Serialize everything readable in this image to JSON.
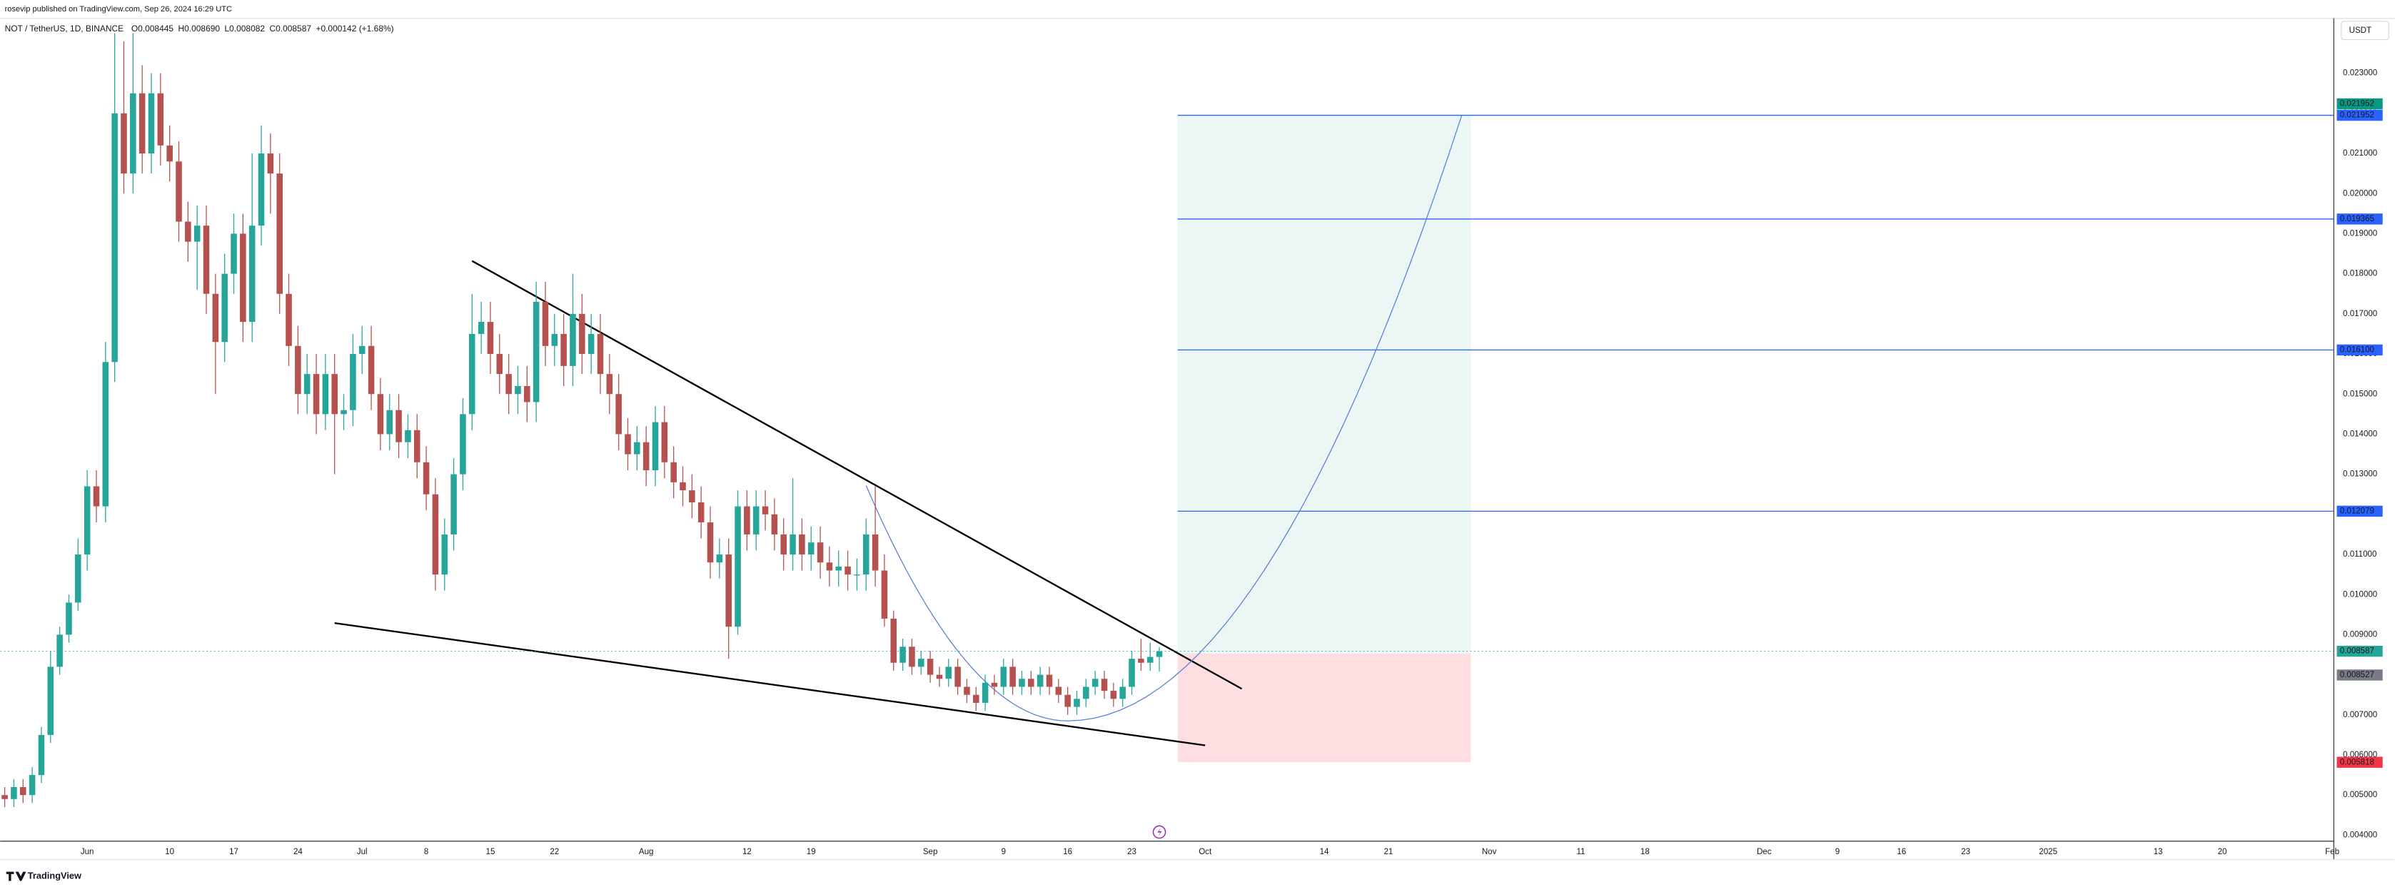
{
  "header": {
    "publisher": "rosevip published on TradingView.com, Sep 26, 2024 16:29 UTC",
    "symbol": "NOT / TetherUS, 1D, BINANCE",
    "ohlc": [
      "O0.008445",
      "H0.008690",
      "L0.008082",
      "C0.008587"
    ],
    "change": "+0.000142 (+1.68%)",
    "currency": "USDT",
    "brand": "TradingView"
  },
  "chart_data": {
    "type": "candlestick",
    "up_color": "#26a69a",
    "down_color": "#b5524f",
    "grid": false,
    "xlim": [
      "2024-05-22",
      "2025-02-01"
    ],
    "ylim": [
      0.00385,
      0.02437
    ],
    "yticks": [
      {
        "value": 0.023,
        "label": "0.023000"
      },
      {
        "value": 0.022,
        "label": "0.022000"
      },
      {
        "value": 0.021,
        "label": "0.021000"
      },
      {
        "value": 0.02,
        "label": "0.020000"
      },
      {
        "value": 0.019,
        "label": "0.019000"
      },
      {
        "value": 0.018,
        "label": "0.018000"
      },
      {
        "value": 0.017,
        "label": "0.017000"
      },
      {
        "value": 0.016,
        "label": "0.016000"
      },
      {
        "value": 0.015,
        "label": "0.015000"
      },
      {
        "value": 0.014,
        "label": "0.014000"
      },
      {
        "value": 0.013,
        "label": "0.013000"
      },
      {
        "value": 0.012,
        "label": "0.012000"
      },
      {
        "value": 0.011,
        "label": "0.011000"
      },
      {
        "value": 0.01,
        "label": "0.010000"
      },
      {
        "value": 0.009,
        "label": "0.009000"
      },
      {
        "value": 0.008,
        "label": "0.008000"
      },
      {
        "value": 0.007,
        "label": "0.007000"
      },
      {
        "value": 0.006,
        "label": "0.006000"
      },
      {
        "value": 0.005,
        "label": "0.005000"
      },
      {
        "value": 0.004,
        "label": "0.004000"
      }
    ],
    "xticks": [
      {
        "value": "2024-06-01",
        "label": "Jun"
      },
      {
        "value": "2024-06-10",
        "label": "10"
      },
      {
        "value": "2024-06-17",
        "label": "17"
      },
      {
        "value": "2024-06-24",
        "label": "24"
      },
      {
        "value": "2024-07-01",
        "label": "Jul"
      },
      {
        "value": "2024-07-08",
        "label": "8"
      },
      {
        "value": "2024-07-15",
        "label": "15"
      },
      {
        "value": "2024-07-22",
        "label": "22"
      },
      {
        "value": "2024-08-01",
        "label": "Aug"
      },
      {
        "value": "2024-08-12",
        "label": "12"
      },
      {
        "value": "2024-08-19",
        "label": "19"
      },
      {
        "value": "2024-09-01",
        "label": "Sep"
      },
      {
        "value": "2024-09-09",
        "label": "9"
      },
      {
        "value": "2024-09-16",
        "label": "16"
      },
      {
        "value": "2024-09-23",
        "label": "23"
      },
      {
        "value": "2024-10-01",
        "label": "Oct"
      },
      {
        "value": "2024-10-14",
        "label": "14"
      },
      {
        "value": "2024-10-21",
        "label": "21"
      },
      {
        "value": "2024-11-01",
        "label": "Nov"
      },
      {
        "value": "2024-11-11",
        "label": "11"
      },
      {
        "value": "2024-11-18",
        "label": "18"
      },
      {
        "value": "2024-12-01",
        "label": "Dec"
      },
      {
        "value": "2024-12-09",
        "label": "9"
      },
      {
        "value": "2024-12-16",
        "label": "16"
      },
      {
        "value": "2024-12-23",
        "label": "23"
      },
      {
        "value": "2025-01-01",
        "label": "2025"
      },
      {
        "value": "2025-01-13",
        "label": "13"
      },
      {
        "value": "2025-01-20",
        "label": "20"
      },
      {
        "value": "2025-02-01",
        "label": "Feb"
      }
    ],
    "x": [
      "2024-05-23",
      "2024-05-24",
      "2024-05-25",
      "2024-05-26",
      "2024-05-27",
      "2024-05-28",
      "2024-05-29",
      "2024-05-30",
      "2024-05-31",
      "2024-06-01",
      "2024-06-02",
      "2024-06-03",
      "2024-06-04",
      "2024-06-05",
      "2024-06-06",
      "2024-06-07",
      "2024-06-08",
      "2024-06-09",
      "2024-06-10",
      "2024-06-11",
      "2024-06-12",
      "2024-06-13",
      "2024-06-14",
      "2024-06-15",
      "2024-06-16",
      "2024-06-17",
      "2024-06-18",
      "2024-06-19",
      "2024-06-20",
      "2024-06-21",
      "2024-06-22",
      "2024-06-23",
      "2024-06-24",
      "2024-06-25",
      "2024-06-26",
      "2024-06-27",
      "2024-06-28",
      "2024-06-29",
      "2024-06-30",
      "2024-07-01",
      "2024-07-02",
      "2024-07-03",
      "2024-07-04",
      "2024-07-05",
      "2024-07-06",
      "2024-07-07",
      "2024-07-08",
      "2024-07-09",
      "2024-07-10",
      "2024-07-11",
      "2024-07-12",
      "2024-07-13",
      "2024-07-14",
      "2024-07-15",
      "2024-07-16",
      "2024-07-17",
      "2024-07-18",
      "2024-07-19",
      "2024-07-20",
      "2024-07-21",
      "2024-07-22",
      "2024-07-23",
      "2024-07-24",
      "2024-07-25",
      "2024-07-26",
      "2024-07-27",
      "2024-07-28",
      "2024-07-29",
      "2024-07-30",
      "2024-07-31",
      "2024-08-01",
      "2024-08-02",
      "2024-08-03",
      "2024-08-04",
      "2024-08-05",
      "2024-08-06",
      "2024-08-07",
      "2024-08-08",
      "2024-08-09",
      "2024-08-10",
      "2024-08-11",
      "2024-08-12",
      "2024-08-13",
      "2024-08-14",
      "2024-08-15",
      "2024-08-16",
      "2024-08-17",
      "2024-08-18",
      "2024-08-19",
      "2024-08-20",
      "2024-08-21",
      "2024-08-22",
      "2024-08-23",
      "2024-08-24",
      "2024-08-25",
      "2024-08-26",
      "2024-08-27",
      "2024-08-28",
      "2024-08-29",
      "2024-08-30",
      "2024-08-31",
      "2024-09-01",
      "2024-09-02",
      "2024-09-03",
      "2024-09-04",
      "2024-09-05",
      "2024-09-06",
      "2024-09-07",
      "2024-09-08",
      "2024-09-09",
      "2024-09-10",
      "2024-09-11",
      "2024-09-12",
      "2024-09-13",
      "2024-09-14",
      "2024-09-15",
      "2024-09-16",
      "2024-09-17",
      "2024-09-18",
      "2024-09-19",
      "2024-09-20",
      "2024-09-21",
      "2024-09-22",
      "2024-09-23",
      "2024-09-24",
      "2024-09-25",
      "2024-09-26"
    ],
    "open": [
      0.005,
      0.0049,
      0.0052,
      0.005,
      0.0055,
      0.0065,
      0.0082,
      0.009,
      0.0098,
      0.011,
      0.0127,
      0.0122,
      0.0158,
      0.022,
      0.0205,
      0.0225,
      0.021,
      0.0225,
      0.0212,
      0.0208,
      0.0193,
      0.0188,
      0.0192,
      0.0175,
      0.0163,
      0.018,
      0.019,
      0.0168,
      0.0192,
      0.021,
      0.0205,
      0.0175,
      0.0162,
      0.015,
      0.0155,
      0.0145,
      0.0155,
      0.0145,
      0.0146,
      0.016,
      0.0162,
      0.015,
      0.014,
      0.0146,
      0.0138,
      0.0141,
      0.0133,
      0.0125,
      0.0105,
      0.0115,
      0.013,
      0.0145,
      0.0165,
      0.0168,
      0.016,
      0.0155,
      0.015,
      0.0152,
      0.0148,
      0.0173,
      0.0162,
      0.0165,
      0.0157,
      0.017,
      0.016,
      0.0165,
      0.0155,
      0.015,
      0.014,
      0.0135,
      0.0138,
      0.0131,
      0.0143,
      0.0133,
      0.0128,
      0.0126,
      0.0123,
      0.0118,
      0.0108,
      0.011,
      0.0092,
      0.0122,
      0.0115,
      0.0122,
      0.012,
      0.0115,
      0.011,
      0.0115,
      0.011,
      0.0113,
      0.0108,
      0.0106,
      0.0107,
      0.0105,
      0.0105,
      0.0115,
      0.0106,
      0.0094,
      0.0083,
      0.0087,
      0.0082,
      0.0084,
      0.008,
      0.0079,
      0.0082,
      0.0077,
      0.0075,
      0.0073,
      0.0078,
      0.0077,
      0.0082,
      0.0077,
      0.0079,
      0.0077,
      0.008,
      0.0077,
      0.0075,
      0.0072,
      0.0074,
      0.0077,
      0.0079,
      0.0076,
      0.0074,
      0.0077,
      0.0084,
      0.0083,
      0.008445
    ],
    "high": [
      0.0052,
      0.0054,
      0.0054,
      0.0057,
      0.0067,
      0.0086,
      0.0092,
      0.01,
      0.0114,
      0.0131,
      0.0131,
      0.0163,
      0.024,
      0.0238,
      0.024,
      0.0232,
      0.023,
      0.023,
      0.0217,
      0.0213,
      0.0198,
      0.0197,
      0.0197,
      0.018,
      0.0185,
      0.0195,
      0.0195,
      0.021,
      0.0217,
      0.0215,
      0.021,
      0.018,
      0.0167,
      0.016,
      0.016,
      0.016,
      0.016,
      0.015,
      0.0165,
      0.0167,
      0.0167,
      0.0154,
      0.015,
      0.015,
      0.0145,
      0.0145,
      0.0137,
      0.0129,
      0.0119,
      0.0134,
      0.0149,
      0.0175,
      0.0173,
      0.0173,
      0.0165,
      0.016,
      0.0157,
      0.0157,
      0.0178,
      0.0178,
      0.017,
      0.017,
      0.018,
      0.0175,
      0.017,
      0.017,
      0.016,
      0.0155,
      0.0144,
      0.0142,
      0.0142,
      0.0147,
      0.0147,
      0.0137,
      0.0132,
      0.013,
      0.0127,
      0.0122,
      0.0114,
      0.0114,
      0.0126,
      0.0126,
      0.0126,
      0.0126,
      0.0124,
      0.0119,
      0.0129,
      0.0119,
      0.0117,
      0.0117,
      0.0112,
      0.0111,
      0.0111,
      0.0109,
      0.0119,
      0.0127,
      0.011,
      0.0096,
      0.0089,
      0.0089,
      0.0086,
      0.0086,
      0.0082,
      0.0084,
      0.0084,
      0.0079,
      0.0077,
      0.008,
      0.008,
      0.0084,
      0.0084,
      0.0081,
      0.0081,
      0.0082,
      0.0082,
      0.0079,
      0.0077,
      0.0076,
      0.0079,
      0.0081,
      0.0081,
      0.0078,
      0.0079,
      0.0086,
      0.0089,
      0.0088,
      0.00869
    ],
    "low": [
      0.0047,
      0.0047,
      0.0048,
      0.0048,
      0.0053,
      0.0063,
      0.008,
      0.0088,
      0.0096,
      0.0106,
      0.0118,
      0.0118,
      0.0153,
      0.02,
      0.02,
      0.0205,
      0.0205,
      0.0207,
      0.0203,
      0.0188,
      0.0183,
      0.0176,
      0.017,
      0.015,
      0.0158,
      0.0175,
      0.0163,
      0.0163,
      0.0187,
      0.0195,
      0.017,
      0.0157,
      0.0145,
      0.0145,
      0.014,
      0.0141,
      0.013,
      0.0141,
      0.0142,
      0.0155,
      0.0146,
      0.0136,
      0.0136,
      0.0134,
      0.0134,
      0.0129,
      0.0121,
      0.0101,
      0.0101,
      0.0111,
      0.0126,
      0.0141,
      0.016,
      0.0155,
      0.015,
      0.0145,
      0.0145,
      0.0143,
      0.0143,
      0.0157,
      0.0157,
      0.0152,
      0.0152,
      0.0155,
      0.0155,
      0.015,
      0.0145,
      0.0136,
      0.0131,
      0.0131,
      0.0127,
      0.0127,
      0.0129,
      0.0124,
      0.0122,
      0.0119,
      0.0114,
      0.0104,
      0.0104,
      0.0084,
      0.009,
      0.0111,
      0.0111,
      0.0116,
      0.0111,
      0.0106,
      0.0106,
      0.0106,
      0.0106,
      0.0104,
      0.0102,
      0.0102,
      0.0101,
      0.0101,
      0.0101,
      0.0102,
      0.0092,
      0.0081,
      0.0081,
      0.008,
      0.008,
      0.0078,
      0.0077,
      0.0077,
      0.0075,
      0.0073,
      0.0071,
      0.0071,
      0.0075,
      0.0075,
      0.0075,
      0.0075,
      0.0075,
      0.0075,
      0.0075,
      0.0073,
      0.007,
      0.007,
      0.0072,
      0.0075,
      0.0074,
      0.0072,
      0.0072,
      0.0075,
      0.0081,
      0.0081,
      0.008082
    ],
    "close": [
      0.0049,
      0.0052,
      0.005,
      0.0055,
      0.0065,
      0.0082,
      0.009,
      0.0098,
      0.011,
      0.0127,
      0.0122,
      0.0158,
      0.022,
      0.0205,
      0.0225,
      0.021,
      0.0225,
      0.0212,
      0.0208,
      0.0193,
      0.0188,
      0.0192,
      0.0175,
      0.0163,
      0.018,
      0.019,
      0.0168,
      0.0192,
      0.021,
      0.0205,
      0.0175,
      0.0162,
      0.015,
      0.0155,
      0.0145,
      0.0155,
      0.0145,
      0.0146,
      0.016,
      0.0162,
      0.015,
      0.014,
      0.0146,
      0.0138,
      0.0141,
      0.0133,
      0.0125,
      0.0105,
      0.0115,
      0.013,
      0.0145,
      0.0165,
      0.0168,
      0.016,
      0.0155,
      0.015,
      0.0152,
      0.0148,
      0.0173,
      0.0162,
      0.0165,
      0.0157,
      0.017,
      0.016,
      0.0165,
      0.0155,
      0.015,
      0.014,
      0.0135,
      0.0138,
      0.0131,
      0.0143,
      0.0133,
      0.0128,
      0.0126,
      0.0123,
      0.0118,
      0.0108,
      0.011,
      0.0092,
      0.0122,
      0.0115,
      0.0122,
      0.012,
      0.0115,
      0.011,
      0.0115,
      0.011,
      0.0113,
      0.0108,
      0.0106,
      0.0107,
      0.0105,
      0.0105,
      0.0115,
      0.0106,
      0.0094,
      0.0083,
      0.0087,
      0.0082,
      0.0084,
      0.008,
      0.0079,
      0.0082,
      0.0077,
      0.0075,
      0.0073,
      0.0078,
      0.0077,
      0.0082,
      0.0077,
      0.0079,
      0.0077,
      0.008,
      0.0077,
      0.0075,
      0.0072,
      0.0074,
      0.0077,
      0.0079,
      0.0076,
      0.0074,
      0.0077,
      0.0084,
      0.0083,
      0.008445,
      0.008587
    ],
    "hlines": [
      {
        "value": 0.021952,
        "color": "#2962ff"
      },
      {
        "value": 0.019365,
        "color": "#2962ff"
      },
      {
        "value": {
          "value": 0.0161,
          "label": "0.016100"
        },
        "color": "#2962ff"
      },
      {
        "value": 0.012079,
        "color": "#2962ff"
      }
    ],
    "position": {
      "start": "2024-09-28",
      "end": "2024-10-30",
      "entry": 0.008527,
      "target": 0.021952,
      "stop": 0.005818,
      "profit_color": "#089981",
      "loss_color": "#f23645"
    },
    "trendlines": [
      {
        "x": [
          "2024-07-13",
          "2024-10-05"
        ],
        "y": [
          0.01832,
          0.00765
        ],
        "color": "#000000"
      },
      {
        "x": [
          "2024-06-28",
          "2024-10-01"
        ],
        "y": [
          0.00929,
          0.00624
        ],
        "color": "#000000"
      }
    ],
    "curve": {
      "x": [
        "2024-08-25",
        "2024-09-16",
        "2024-10-29"
      ],
      "y": [
        0.01272,
        0.00685,
        0.02195
      ],
      "color": "#5b7fd6"
    }
  }
}
